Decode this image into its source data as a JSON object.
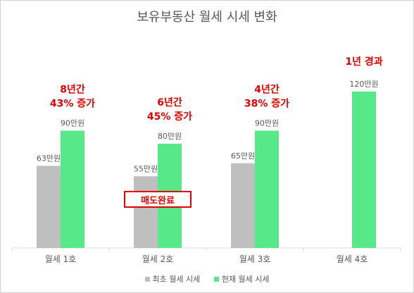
{
  "title": "보유부동산 월세 시세 변화",
  "chart_data": {
    "type": "bar",
    "categories": [
      "월세 1호",
      "월세 2호",
      "월세 3호",
      "월세 4호"
    ],
    "series": [
      {
        "name": "최초 월세 시세",
        "values": [
          63,
          55,
          65,
          null
        ],
        "labels": [
          "63만원",
          "55만원",
          "65만원",
          ""
        ],
        "color": "#bfbfbf"
      },
      {
        "name": "현재 월세 시세",
        "values": [
          90,
          80,
          90,
          120
        ],
        "labels": [
          "90만원",
          "80만원",
          "90만원",
          "120만원"
        ],
        "color": "#57e88a"
      }
    ],
    "unit": "만원",
    "ylim": [
      0,
      120
    ],
    "grid": false,
    "legend_position": "bottom",
    "annotations": [
      {
        "line1": "8년간",
        "line2": "43% 증가"
      },
      {
        "line1": "6년간",
        "line2": "45% 증가"
      },
      {
        "line1": "4년간",
        "line2": "38% 증가"
      },
      {
        "line1": "1년 경과",
        "line2": ""
      }
    ],
    "annotation_color": "#e00000"
  },
  "badge_text": "매도완료"
}
